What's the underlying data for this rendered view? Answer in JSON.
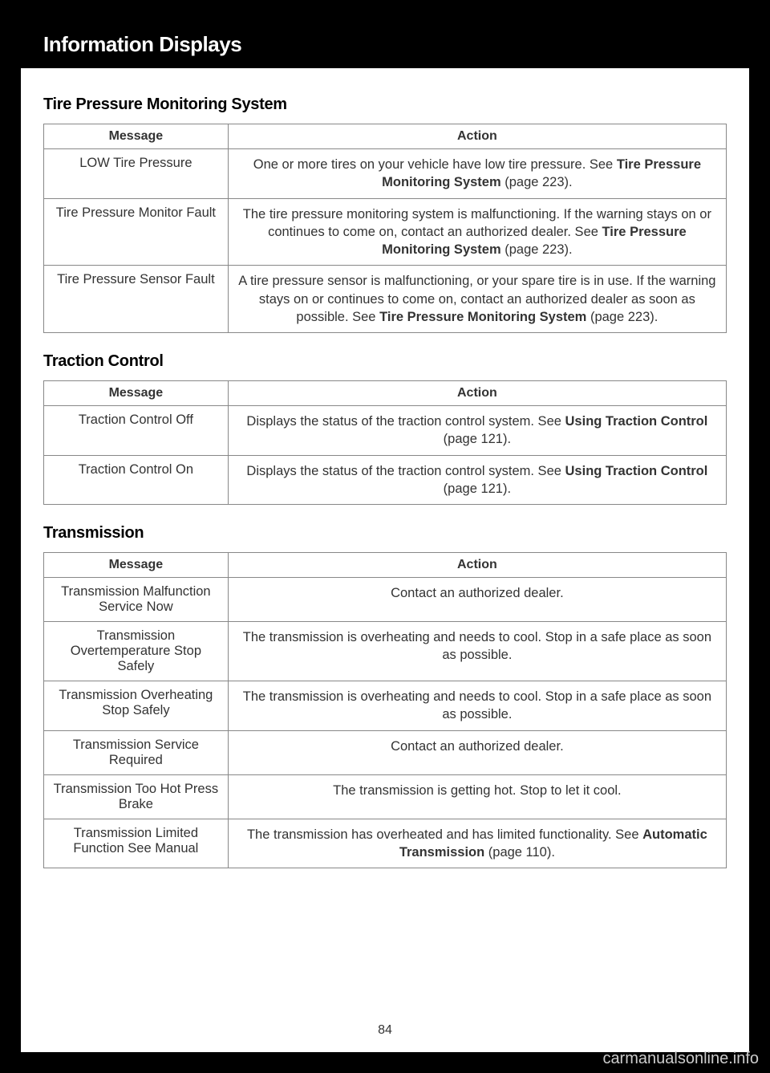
{
  "header": {
    "title": "Information Displays"
  },
  "sections": [
    {
      "title": "Tire Pressure Monitoring System",
      "columns": [
        "Message",
        "Action"
      ],
      "rows": [
        {
          "message": "LOW Tire Pressure",
          "action_pre": "One or more tires on your vehicle have low tire pressure.  See ",
          "action_bold": "Tire Pressure Monitoring System",
          "action_post": " (page 223)."
        },
        {
          "message": "Tire Pressure Monitor Fault",
          "action_pre": "The tire pressure monitoring system is malfunctioning. If the warning stays on or continues to come on, contact an authorized dealer. See ",
          "action_bold": "Tire Pressure Monitoring System",
          "action_post": " (page 223)."
        },
        {
          "message": "Tire Pressure Sensor Fault",
          "action_pre": "A tire pressure sensor is malfunctioning, or your spare tire is in use. If the warning stays on or continues to come on, contact an authorized dealer as soon as possible.  See ",
          "action_bold": "Tire Pressure Monitoring System",
          "action_post": " (page 223)."
        }
      ]
    },
    {
      "title": "Traction Control",
      "columns": [
        "Message",
        "Action"
      ],
      "rows": [
        {
          "message": "Traction Control Off",
          "action_pre": "Displays the status of the traction control system.  See ",
          "action_bold": "Using Traction Control",
          "action_post": " (page 121)."
        },
        {
          "message": "Traction Control On",
          "action_pre": "Displays the status of the traction control system.  See ",
          "action_bold": "Using Traction Control",
          "action_post": " (page 121)."
        }
      ]
    },
    {
      "title": "Transmission",
      "columns": [
        "Message",
        "Action"
      ],
      "rows": [
        {
          "message": "Transmission Malfunction Service Now",
          "action_pre": "Contact an authorized dealer.",
          "action_bold": "",
          "action_post": ""
        },
        {
          "message": "Transmission Overtemperature Stop Safely",
          "action_pre": "The transmission is overheating and needs to cool. Stop in a safe place as soon as possible.",
          "action_bold": "",
          "action_post": ""
        },
        {
          "message": "Transmission Overheating Stop Safely",
          "action_pre": "The transmission is overheating and needs to cool. Stop in a safe place as soon as possible.",
          "action_bold": "",
          "action_post": ""
        },
        {
          "message": "Transmission Service Required",
          "action_pre": "Contact an authorized dealer.",
          "action_bold": "",
          "action_post": ""
        },
        {
          "message": "Transmission Too Hot Press Brake",
          "action_pre": "The transmission is getting hot. Stop to let it cool.",
          "action_bold": "",
          "action_post": ""
        },
        {
          "message": "Transmission Limited Function See Manual",
          "action_pre": "The transmission has overheated and has limited functionality. See ",
          "action_bold": "Automatic Transmission",
          "action_post": " (page 110)."
        }
      ]
    }
  ],
  "page_number": "84",
  "watermark": "carmanualsonline.info",
  "colors": {
    "page_bg": "#000000",
    "content_bg": "#ffffff",
    "border": "#888888",
    "text": "#333333",
    "watermark": "#cccccc"
  }
}
